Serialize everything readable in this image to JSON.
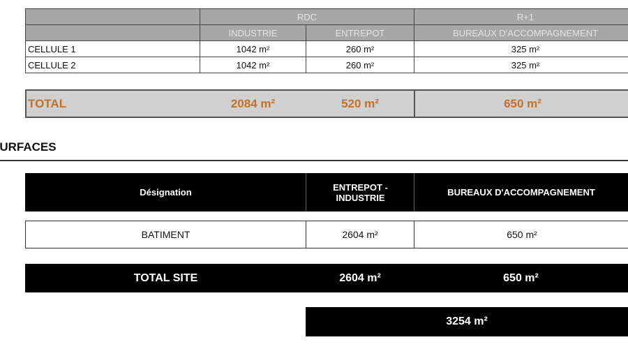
{
  "table1": {
    "header1": [
      "",
      "RDC",
      "R+1"
    ],
    "header2": [
      "",
      "INDUSTRIE",
      "ENTREPOT",
      "BUREAUX D'ACCOMPAGNEMENT"
    ],
    "rows": [
      [
        "CELLULE 1",
        "1042 m²",
        "260 m²",
        "325 m²"
      ],
      [
        "CELLULE 2",
        "1042 m²",
        "260 m²",
        "325 m²"
      ]
    ],
    "total": [
      "TOTAL",
      "2084 m²",
      "520 m²",
      "650 m²"
    ]
  },
  "section_title": "SURFACES",
  "table2": {
    "header": [
      "Désignation",
      "ENTREPOT - INDUSTRIE",
      "BUREAUX D'ACCOMPAGNEMENT"
    ],
    "row": [
      "BATIMENT",
      "2604 m²",
      "650 m²"
    ],
    "total": [
      "TOTAL SITE",
      "2604 m²",
      "650 m²"
    ],
    "grand_total": "3254 m²"
  },
  "colors": {
    "header_gray": "#a7a7a7",
    "total_orange": "#c0712a",
    "black": "#000000"
  }
}
